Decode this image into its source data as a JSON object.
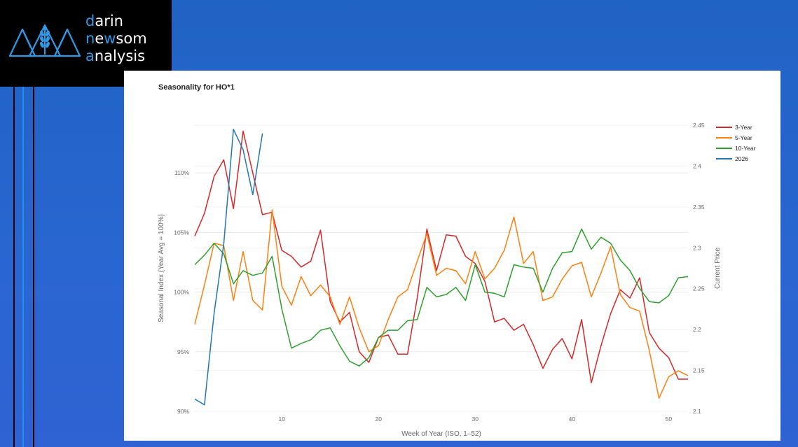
{
  "brand": {
    "line1": {
      "first": "d",
      "rest": "arin"
    },
    "line2": {
      "first": "n",
      "mid": "e",
      "mid_accent": "w",
      "rest": "som"
    },
    "line3": {
      "first": "a",
      "rest": "nalysis"
    },
    "accent_color": "#2f9be8"
  },
  "chart_data": {
    "type": "line",
    "title": "Seasonality for HO*1",
    "xlabel": "Week of Year (ISO, 1–52)",
    "ylabel": "Seasonal Index (Year Avg = 100%)",
    "y2label": "Current Price",
    "xlim": [
      1,
      52
    ],
    "ylim": [
      90,
      114
    ],
    "y2lim": [
      2.1,
      2.45
    ],
    "x_ticks": [
      "10",
      "20",
      "30",
      "40",
      "50"
    ],
    "x_tick_values": [
      10,
      20,
      30,
      40,
      50
    ],
    "y_ticks": [
      "90%",
      "95%",
      "100%",
      "105%",
      "110%"
    ],
    "y_tick_values": [
      90,
      95,
      100,
      105,
      110
    ],
    "y2_ticks": [
      "2.1",
      "2.15",
      "2.2",
      "2.25",
      "2.3",
      "2.35",
      "2.4",
      "2.45"
    ],
    "y2_tick_values": [
      2.1,
      2.15,
      2.2,
      2.25,
      2.3,
      2.35,
      2.4,
      2.45
    ],
    "grid": true,
    "legend_position": "top-right",
    "series": [
      {
        "name": "3-Year",
        "color": "#d62728",
        "axis": "left",
        "x": [
          1,
          2,
          3,
          4,
          5,
          6,
          7,
          8,
          9,
          10,
          11,
          12,
          13,
          14,
          15,
          16,
          17,
          18,
          19,
          20,
          21,
          22,
          23,
          24,
          25,
          26,
          27,
          28,
          29,
          30,
          31,
          32,
          33,
          34,
          35,
          36,
          37,
          38,
          39,
          40,
          41,
          42,
          43,
          44,
          45,
          46,
          47,
          48,
          49,
          50,
          51,
          52
        ],
        "values": [
          104.7,
          106.6,
          109.7,
          111.1,
          107.0,
          113.5,
          110.0,
          106.5,
          106.7,
          103.5,
          103.0,
          102.1,
          102.6,
          105.2,
          99.2,
          97.5,
          98.3,
          95.0,
          94.1,
          96.2,
          96.4,
          94.8,
          94.8,
          99.5,
          105.3,
          101.8,
          104.8,
          104.7,
          103.0,
          102.4,
          100.9,
          97.5,
          97.8,
          96.8,
          97.3,
          95.6,
          93.6,
          95.2,
          96.1,
          94.4,
          97.7,
          92.4,
          95.5,
          98.2,
          100.2,
          99.5,
          101.2,
          96.6,
          95.3,
          94.5,
          92.7,
          92.7
        ]
      },
      {
        "name": "5-Year",
        "color": "#ff7f0e",
        "axis": "left",
        "x": [
          1,
          2,
          3,
          4,
          5,
          6,
          7,
          8,
          9,
          10,
          11,
          12,
          13,
          14,
          15,
          16,
          17,
          18,
          19,
          20,
          21,
          22,
          23,
          24,
          25,
          26,
          27,
          28,
          29,
          30,
          31,
          32,
          33,
          34,
          35,
          36,
          37,
          38,
          39,
          40,
          41,
          42,
          43,
          44,
          45,
          46,
          47,
          48,
          49,
          50,
          51,
          52
        ],
        "values": [
          97.3,
          100.6,
          104.1,
          103.9,
          99.3,
          103.4,
          99.3,
          98.5,
          106.9,
          100.5,
          98.9,
          101.3,
          99.7,
          100.6,
          99.6,
          97.3,
          99.6,
          97.0,
          95.0,
          95.5,
          97.7,
          99.6,
          100.2,
          102.6,
          104.9,
          101.4,
          102.0,
          101.8,
          100.7,
          103.4,
          101.1,
          102.0,
          103.5,
          106.3,
          102.4,
          103.4,
          99.3,
          99.6,
          101.1,
          102.2,
          102.5,
          99.6,
          101.6,
          103.8,
          99.8,
          98.7,
          98.4,
          95.1,
          91.1,
          92.9,
          93.4,
          93.0
        ]
      },
      {
        "name": "10-Year",
        "color": "#2ca02c",
        "axis": "left",
        "x": [
          1,
          2,
          3,
          4,
          5,
          6,
          7,
          8,
          9,
          10,
          11,
          12,
          13,
          14,
          15,
          16,
          17,
          18,
          19,
          20,
          21,
          22,
          23,
          24,
          25,
          26,
          27,
          28,
          29,
          30,
          31,
          32,
          33,
          34,
          35,
          36,
          37,
          38,
          39,
          40,
          41,
          42,
          43,
          44,
          45,
          46,
          47,
          48,
          49,
          50,
          51,
          52
        ],
        "values": [
          102.3,
          103.1,
          104.1,
          103.2,
          100.7,
          101.8,
          101.4,
          101.6,
          103.0,
          98.6,
          95.3,
          95.7,
          96.0,
          96.8,
          97.0,
          95.5,
          94.2,
          93.8,
          94.5,
          96.2,
          96.8,
          96.8,
          97.6,
          97.7,
          100.4,
          99.6,
          99.8,
          100.4,
          99.3,
          102.3,
          100.0,
          99.9,
          99.6,
          102.3,
          102.1,
          102.0,
          100.0,
          102.0,
          103.3,
          103.4,
          105.3,
          103.6,
          104.6,
          104.1,
          102.7,
          101.8,
          100.3,
          99.2,
          99.1,
          99.7,
          101.2,
          101.3
        ]
      },
      {
        "name": "2026",
        "color": "#1f77b4",
        "axis": "right",
        "x": [
          1,
          2,
          3,
          4,
          5,
          6,
          7,
          8
        ],
        "values": [
          2.115,
          2.108,
          2.22,
          2.305,
          2.445,
          2.42,
          2.365,
          2.44
        ]
      }
    ]
  }
}
